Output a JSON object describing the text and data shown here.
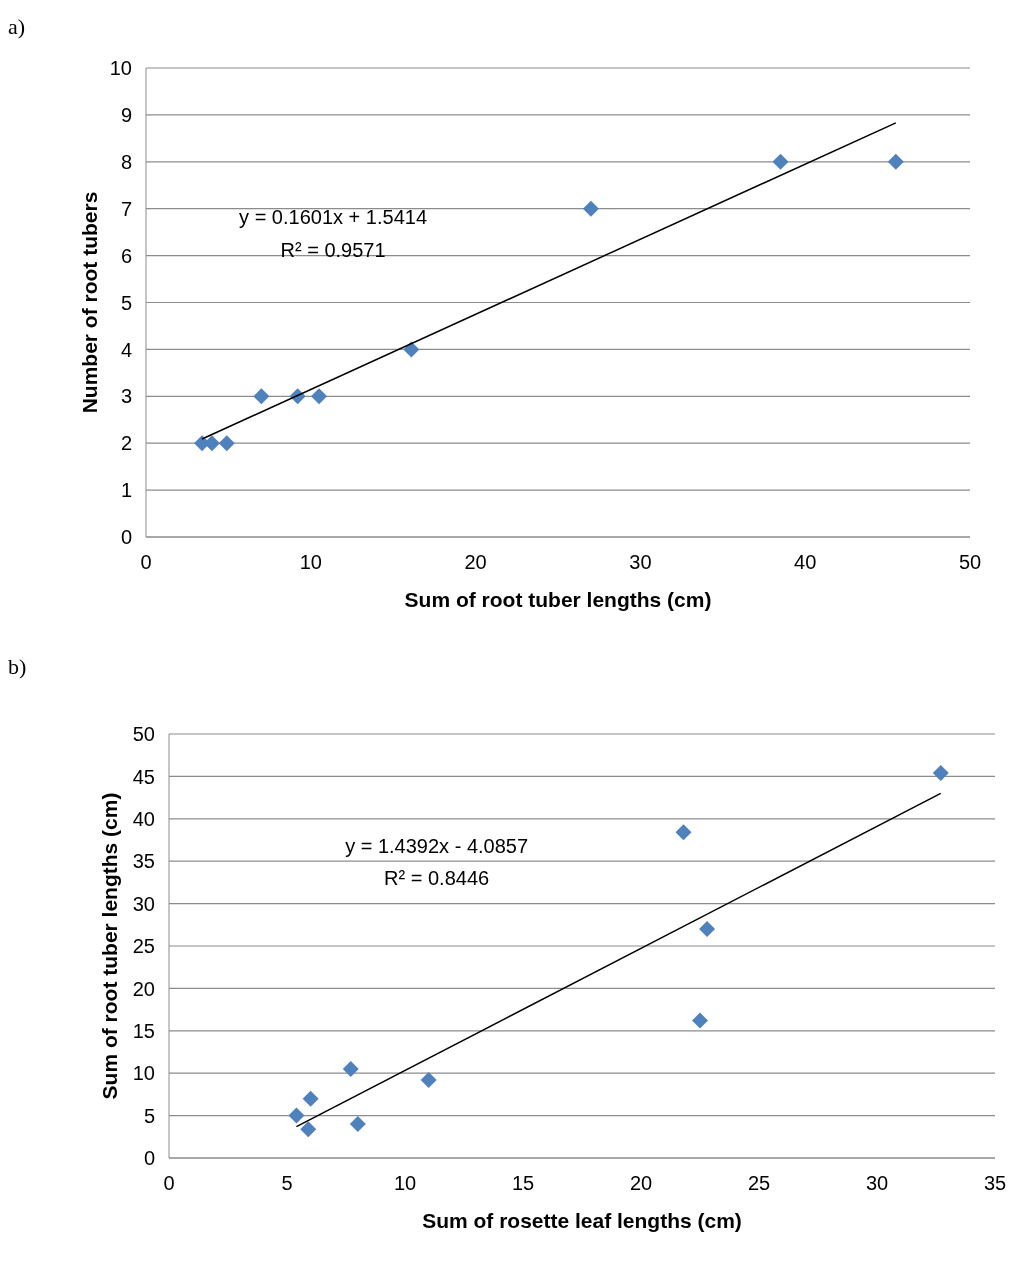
{
  "chart_data": [
    {
      "type": "scatter",
      "title": "a)",
      "xlabel": "Sum of root tuber lengths (cm)",
      "ylabel": "Number of root tubers",
      "annotations": [
        "y = 0.1601x + 1.5414",
        "R² = 0.9571"
      ],
      "xlim": [
        0,
        50
      ],
      "xticks": [
        0,
        10,
        20,
        30,
        40,
        50
      ],
      "ylim": [
        0,
        10
      ],
      "yticks": [
        0,
        1,
        2,
        3,
        4,
        5,
        6,
        7,
        8,
        9,
        10
      ],
      "grid": "y",
      "series": [
        {
          "marker": "diamond",
          "color": "#4f81bd",
          "x": [
            3.4,
            4.0,
            4.9,
            7.0,
            9.2,
            10.5,
            16.1,
            27.0,
            38.5,
            45.5
          ],
          "values": [
            2,
            2,
            2,
            3,
            3,
            3,
            4,
            7,
            8,
            8
          ]
        },
        {
          "type": "line",
          "marker": "none",
          "color": "#000000",
          "x": [
            3.4,
            45.5
          ],
          "values": [
            2.09,
            8.83
          ]
        }
      ]
    },
    {
      "type": "scatter",
      "title": "b)",
      "xlabel": "Sum of rosette leaf lengths (cm)",
      "ylabel": "Sum of root tuber lengths (cm)",
      "annotations": [
        "y = 1.4392x - 4.0857",
        "R² = 0.8446"
      ],
      "xlim": [
        0,
        35
      ],
      "xticks": [
        0,
        5,
        10,
        15,
        20,
        25,
        30,
        35
      ],
      "ylim": [
        0,
        50
      ],
      "yticks": [
        0,
        5,
        10,
        15,
        20,
        25,
        30,
        35,
        40,
        45,
        50
      ],
      "grid": "y",
      "series": [
        {
          "marker": "diamond",
          "color": "#4f81bd",
          "x": [
            5.4,
            5.9,
            6.0,
            7.7,
            8.0,
            11.0,
            21.8,
            22.5,
            22.8,
            32.7
          ],
          "values": [
            5.0,
            3.4,
            7.0,
            10.5,
            4.0,
            9.2,
            38.4,
            16.2,
            27.0,
            45.4
          ]
        },
        {
          "type": "line",
          "marker": "none",
          "color": "#000000",
          "x": [
            5.4,
            32.7
          ],
          "values": [
            3.7,
            43.0
          ]
        }
      ]
    }
  ]
}
